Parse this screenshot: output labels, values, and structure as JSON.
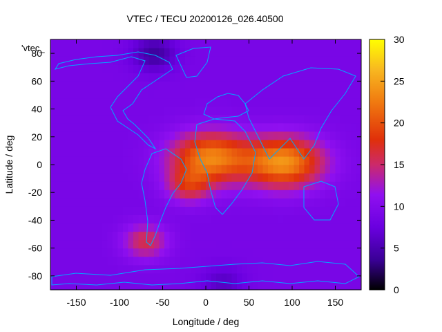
{
  "chart_data": {
    "type": "heatmap",
    "title": "VTEC / TECU 20200126_026.40500",
    "xlabel": "Longitude / deg",
    "ylabel": "Latitude / deg",
    "xlim": [
      -180,
      180
    ],
    "ylim": [
      -90,
      90
    ],
    "x_ticks": [
      -150,
      -100,
      -50,
      0,
      50,
      100,
      150
    ],
    "y_ticks": [
      -80,
      -60,
      -40,
      -20,
      0,
      20,
      40,
      60,
      80
    ],
    "colorbar": {
      "range": [
        0,
        30
      ],
      "ticks": [
        0,
        5,
        10,
        15,
        20,
        25,
        30
      ],
      "colormap": "black-purple-red-orange-yellow",
      "colors": [
        "#000000",
        "#5500c8",
        "#8a10f0",
        "#cc2a6a",
        "#e8400a",
        "#f2a020",
        "#ffff00"
      ]
    },
    "legend_entry": "'vtec_",
    "background_level_tecu": 9,
    "features": [
      {
        "name": "equatorial-anomaly-africa",
        "lon": 5,
        "lat": 5,
        "peak_tecu": 23
      },
      {
        "name": "equatorial-anomaly-indian-ocean",
        "lon": 90,
        "lat": 2,
        "peak_tecu": 24
      },
      {
        "name": "south-atlantic-band",
        "lon": -20,
        "lat": -15,
        "peak_tecu": 16
      },
      {
        "name": "south-america-patch",
        "lon": -70,
        "lat": -55,
        "peak_tecu": 16
      },
      {
        "name": "polar-north-low",
        "lon": -60,
        "lat": 80,
        "peak_tecu": 4
      },
      {
        "name": "antarctic-low",
        "lon": 20,
        "lat": -85,
        "peak_tecu": 6
      }
    ],
    "grid": false,
    "coastlines_color": "#00a0ff"
  }
}
